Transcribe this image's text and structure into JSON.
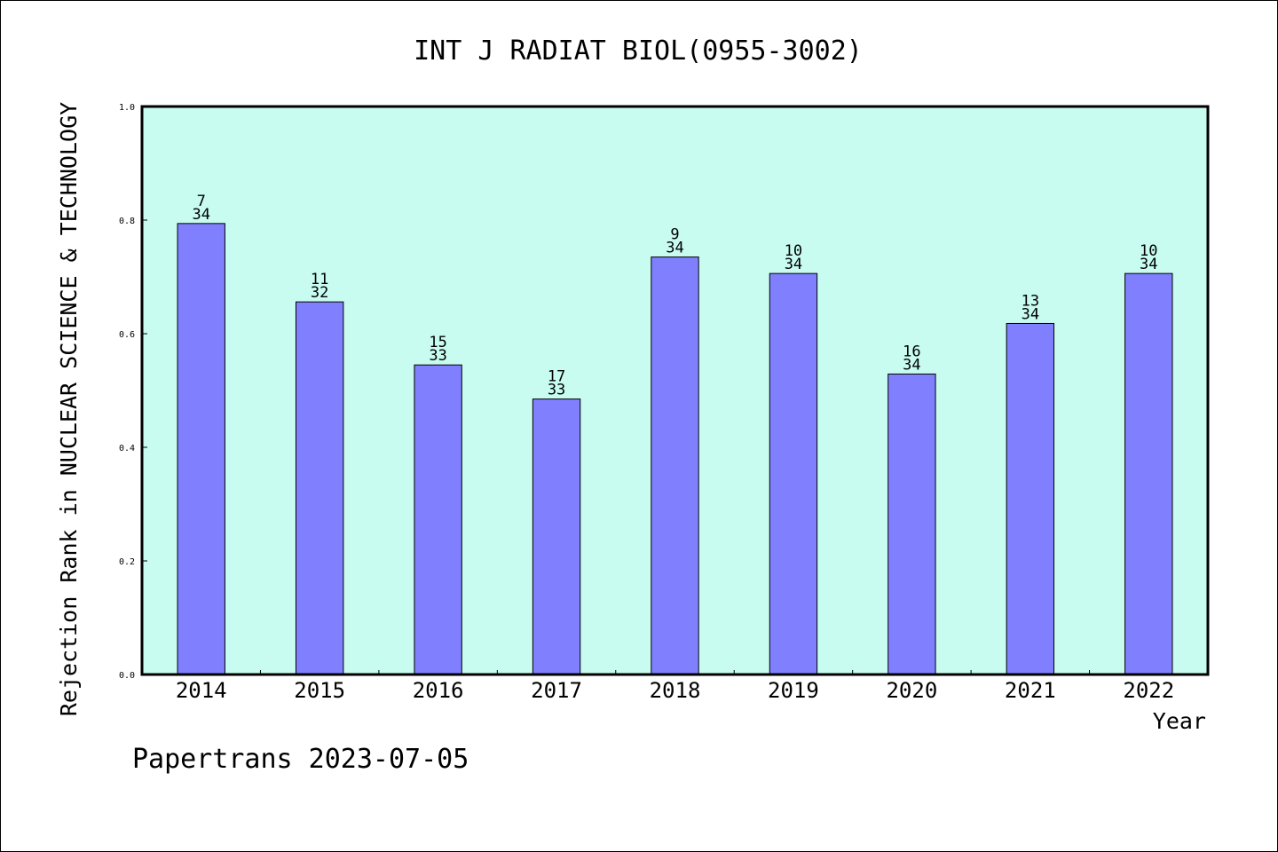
{
  "chart_data": {
    "type": "bar",
    "title": "INT J RADIAT BIOL(0955-3002)",
    "xlabel": "Year",
    "ylabel": "Rejection Rank in NUCLEAR SCIENCE & TECHNOLOGY",
    "ylim": [
      0,
      1.0
    ],
    "yticks": [
      "0.0",
      "0.2",
      "0.4",
      "0.6",
      "0.8",
      "1.0"
    ],
    "categories": [
      "2014",
      "2015",
      "2016",
      "2017",
      "2018",
      "2019",
      "2020",
      "2021",
      "2022"
    ],
    "values": [
      0.794,
      0.656,
      0.545,
      0.485,
      0.735,
      0.706,
      0.529,
      0.618,
      0.706
    ],
    "labels": [
      {
        "rank": "7",
        "total": "34"
      },
      {
        "rank": "11",
        "total": "32"
      },
      {
        "rank": "15",
        "total": "33"
      },
      {
        "rank": "17",
        "total": "33"
      },
      {
        "rank": "9",
        "total": "34"
      },
      {
        "rank": "10",
        "total": "34"
      },
      {
        "rank": "16",
        "total": "34"
      },
      {
        "rank": "13",
        "total": "34"
      },
      {
        "rank": "10",
        "total": "34"
      }
    ],
    "grid": false,
    "colors": {
      "plot_bg": "#c8fcf0",
      "bar_fill": "#8080ff",
      "bar_edge": "#000000"
    }
  },
  "footer": "Papertrans 2023-07-05"
}
